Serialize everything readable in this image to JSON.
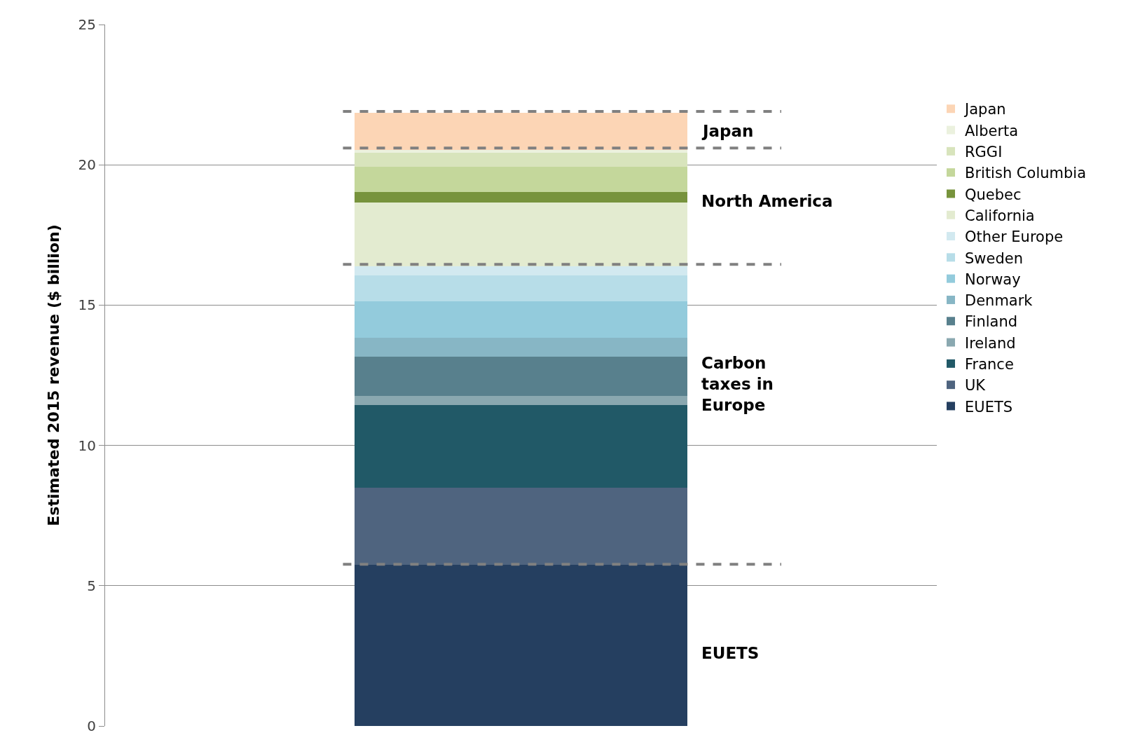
{
  "chart_data": {
    "type": "bar",
    "stacked": true,
    "categories": [
      null
    ],
    "ylabel": "Estimated 2015 revenue ($ billion)",
    "ylim": [
      0,
      25
    ],
    "yticks": [
      0,
      5,
      10,
      15,
      20,
      25
    ],
    "grid": "y",
    "legend": "top right",
    "series": [
      {
        "name": "EUETS",
        "color": "#253f60",
        "values": [
          5.74
        ]
      },
      {
        "name": "UK",
        "color": "#4f647f",
        "values": [
          2.76
        ]
      },
      {
        "name": "France",
        "color": "#215967",
        "values": [
          2.93
        ]
      },
      {
        "name": "Ireland",
        "color": "#8aa8b0",
        "values": [
          0.33
        ]
      },
      {
        "name": "Finland",
        "color": "#58808d",
        "values": [
          1.41
        ]
      },
      {
        "name": "Denmark",
        "color": "#87b6c5",
        "values": [
          0.66
        ]
      },
      {
        "name": "Norway",
        "color": "#93cbdc",
        "values": [
          1.31
        ]
      },
      {
        "name": "Sweden",
        "color": "#b7dde8",
        "values": [
          0.93
        ]
      },
      {
        "name": "Other Europe",
        "color": "#d2e9f0",
        "values": [
          0.31
        ]
      },
      {
        "name": "California",
        "color": "#e3ebd0",
        "values": [
          2.27
        ]
      },
      {
        "name": "Quebec",
        "color": "#77933c",
        "values": [
          0.38
        ]
      },
      {
        "name": "British Columbia",
        "color": "#c4d79b",
        "values": [
          0.9
        ]
      },
      {
        "name": "RGGI",
        "color": "#d8e4bc",
        "values": [
          0.5
        ]
      },
      {
        "name": "Alberta",
        "color": "#ebf1de",
        "values": [
          0.11
        ]
      },
      {
        "name": "Japan",
        "color": "#fcd5b5",
        "values": [
          1.32
        ]
      }
    ],
    "ref_lines": [
      {
        "axis": "y",
        "value": 21.9,
        "color": "#808080",
        "line_style": "dashed"
      },
      {
        "axis": "y",
        "value": 20.6,
        "color": "#808080",
        "line_style": "dashed"
      },
      {
        "axis": "y",
        "value": 16.45,
        "color": "#808080",
        "line_style": "dashed"
      },
      {
        "axis": "y",
        "value": 5.76,
        "color": "#808080",
        "line_style": "dashed"
      }
    ],
    "annotations": [
      "Japan",
      "North America",
      "Carbon taxes in Europe",
      "EUETS"
    ]
  }
}
